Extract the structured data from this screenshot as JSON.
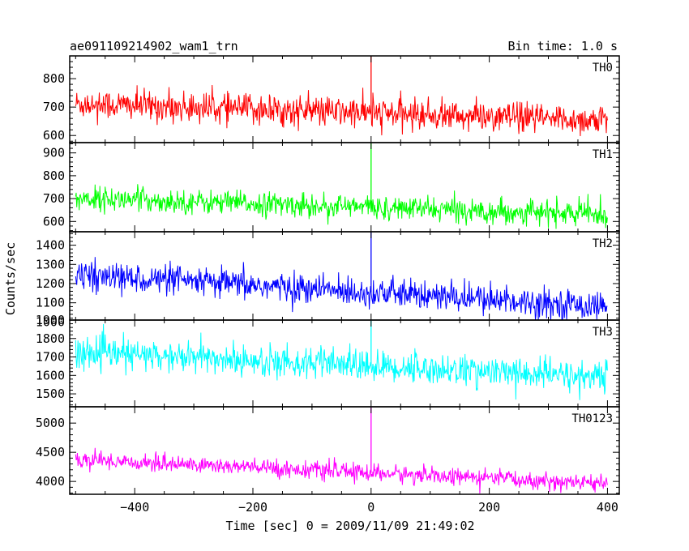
{
  "chart_data": {
    "type": "line",
    "title": "ae091109214902_wam1_trn",
    "bin_time_label": "Bin time: 1.0 s",
    "xlabel": "Time [sec] 0 = 2009/11/09 21:49:02",
    "ylabel": "Counts/sec",
    "xlim": [
      -510,
      420
    ],
    "x_ticks": [
      -400,
      -200,
      0,
      200,
      400
    ],
    "x_tick_labels": [
      "−400",
      "−200",
      "0",
      "200",
      "400"
    ],
    "x_start": -500,
    "x_end": 400,
    "bin_seconds": 1.0,
    "marker_x": 0,
    "grid": false,
    "legend": "none",
    "panels": [
      {
        "name": "TH0",
        "color": "#ff0000",
        "ylim": [
          575,
          880
        ],
        "y_ticks": [
          600,
          700,
          800
        ],
        "y_tick_labels": [
          "600",
          "700",
          "800"
        ],
        "trend_start": 712,
        "trend_end": 652,
        "noise_sigma": 27,
        "spike_top": 880
      },
      {
        "name": "TH1",
        "color": "#00ff00",
        "ylim": [
          555,
          945
        ],
        "y_ticks": [
          600,
          700,
          800,
          900
        ],
        "y_tick_labels": [
          "600",
          "700",
          "800",
          "900"
        ],
        "trend_start": 702,
        "trend_end": 630,
        "noise_sigma": 26,
        "spike_top": 945
      },
      {
        "name": "TH2",
        "color": "#0000ff",
        "ylim": [
          1010,
          1470
        ],
        "y_ticks": [
          1000,
          1100,
          1200,
          1300,
          1400
        ],
        "y_tick_labels": [
          "1000",
          "1100",
          "1200",
          "1300",
          "1400"
        ],
        "trend_start": 1245,
        "trend_end": 1080,
        "noise_sigma": 38,
        "spike_top": 1470
      },
      {
        "name": "TH3",
        "color": "#00ffff",
        "ylim": [
          1430,
          1900
        ],
        "y_ticks": [
          1500,
          1600,
          1700,
          1800,
          1900
        ],
        "y_tick_labels": [
          "1500",
          "1600",
          "1700",
          "1800",
          "1900"
        ],
        "trend_start": 1725,
        "trend_end": 1590,
        "noise_sigma": 42,
        "spike_top": 1900
      },
      {
        "name": "TH0123",
        "color": "#ff00ff",
        "ylim": [
          3780,
          5280
        ],
        "y_ticks": [
          4000,
          4500,
          5000
        ],
        "y_tick_labels": [
          "4000",
          "4500",
          "5000"
        ],
        "trend_start": 4380,
        "trend_end": 3960,
        "noise_sigma": 75,
        "spike_top": 5280
      }
    ]
  }
}
